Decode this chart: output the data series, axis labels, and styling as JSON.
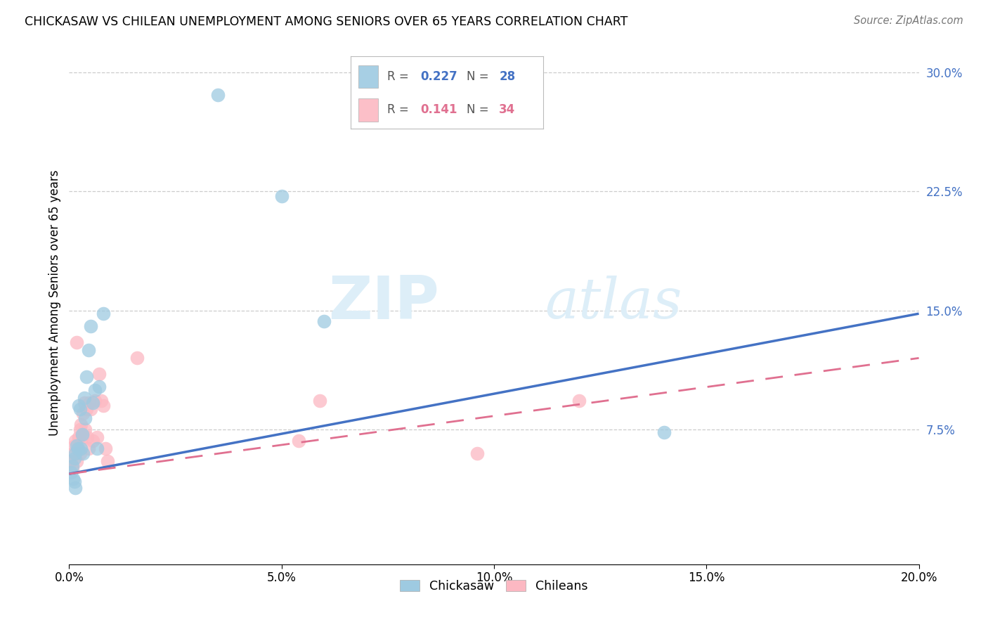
{
  "title": "CHICKASAW VS CHILEAN UNEMPLOYMENT AMONG SENIORS OVER 65 YEARS CORRELATION CHART",
  "source": "Source: ZipAtlas.com",
  "ylabel": "Unemployment Among Seniors over 65 years",
  "xlim": [
    0.0,
    0.2
  ],
  "ylim": [
    -0.01,
    0.32
  ],
  "xticks": [
    0.0,
    0.05,
    0.1,
    0.15,
    0.2
  ],
  "xtick_labels": [
    "0.0%",
    "5.0%",
    "10.0%",
    "15.0%",
    "20.0%"
  ],
  "ytick_positions": [
    0.075,
    0.15,
    0.225,
    0.3
  ],
  "ytick_labels": [
    "7.5%",
    "15.0%",
    "22.5%",
    "30.0%"
  ],
  "chickasaw_color": "#9ecae1",
  "chilean_color": "#fcb8c2",
  "chickasaw_line_color": "#4472c4",
  "chilean_line_color": "#e07090",
  "watermark_zip": "ZIP",
  "watermark_atlas": "atlas",
  "watermark_color": "#ddeef8",
  "chickasaw_x": [
    0.0005,
    0.0008,
    0.001,
    0.0012,
    0.0013,
    0.0015,
    0.0015,
    0.0018,
    0.002,
    0.0022,
    0.0025,
    0.0028,
    0.003,
    0.0032,
    0.0035,
    0.0038,
    0.004,
    0.0045,
    0.005,
    0.0055,
    0.006,
    0.0065,
    0.007,
    0.008,
    0.035,
    0.05,
    0.06,
    0.14
  ],
  "chickasaw_y": [
    0.048,
    0.052,
    0.044,
    0.057,
    0.042,
    0.06,
    0.038,
    0.065,
    0.063,
    0.09,
    0.088,
    0.063,
    0.072,
    0.06,
    0.095,
    0.082,
    0.108,
    0.125,
    0.14,
    0.092,
    0.1,
    0.063,
    0.102,
    0.148,
    0.286,
    0.222,
    0.143,
    0.073
  ],
  "chilean_x": [
    0.0005,
    0.0008,
    0.001,
    0.0012,
    0.0015,
    0.0017,
    0.0018,
    0.002,
    0.0022,
    0.0025,
    0.0025,
    0.0028,
    0.003,
    0.0032,
    0.0035,
    0.0038,
    0.004,
    0.0042,
    0.0045,
    0.0048,
    0.005,
    0.0055,
    0.006,
    0.0065,
    0.007,
    0.0075,
    0.008,
    0.0085,
    0.009,
    0.016,
    0.054,
    0.059,
    0.096,
    0.12
  ],
  "chilean_y": [
    0.055,
    0.05,
    0.06,
    0.065,
    0.068,
    0.055,
    0.13,
    0.062,
    0.07,
    0.075,
    0.06,
    0.078,
    0.07,
    0.085,
    0.092,
    0.075,
    0.088,
    0.07,
    0.063,
    0.092,
    0.088,
    0.068,
    0.093,
    0.07,
    0.11,
    0.093,
    0.09,
    0.063,
    0.055,
    0.12,
    0.068,
    0.093,
    0.06,
    0.093
  ],
  "blue_line_x0": 0.0,
  "blue_line_y0": 0.047,
  "blue_line_x1": 0.2,
  "blue_line_y1": 0.148,
  "pink_line_x0": 0.0,
  "pink_line_y0": 0.047,
  "pink_line_x1": 0.2,
  "pink_line_y1": 0.12
}
